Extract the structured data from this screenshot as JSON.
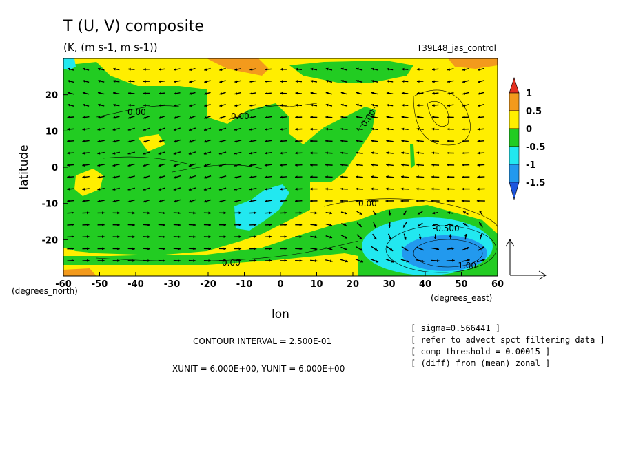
{
  "title": "T (U, V) composite",
  "units": "(K, (m s-1, m s-1))",
  "experiment": "T39L48_jas_control",
  "chart_data": {
    "type": "heatmap",
    "xlabel": "lon",
    "ylabel": "latitude",
    "xunits": "(degrees_east)",
    "yunits": "(degrees_north)",
    "xlim": [
      -60,
      60
    ],
    "ylim": [
      -30,
      30
    ],
    "xticks": [
      "-60",
      "-50",
      "-40",
      "-30",
      "-20",
      "-10",
      "0",
      "10",
      "20",
      "30",
      "40",
      "50",
      "60"
    ],
    "yticks": [
      "20",
      "10",
      "0",
      "-10",
      "-20"
    ],
    "colorbar": {
      "labels": [
        "1",
        "0.5",
        "0",
        "-0.5",
        "-1",
        "-1.5"
      ],
      "colors": [
        "#e53020",
        "#f39a1c",
        "#ffee00",
        "#22cc22",
        "#22e8f0",
        "#2299ee",
        "#1e55dd"
      ]
    },
    "contour_labels": [
      "0.00",
      "0.00",
      "0.00",
      "0.00",
      "-0.500",
      "0.00",
      "-1.00"
    ],
    "vector_field": {
      "type": "wind vectors (U, V)",
      "reference_arrow": true
    }
  },
  "footer": {
    "contour_interval": "CONTOUR INTERVAL = 2.500E-01",
    "units": "XUNIT = 6.000E+00, YUNIT = 6.000E+00"
  },
  "notes": [
    "[ sigma=0.566441 ]",
    "[ refer to advect spct filtering data ]",
    "[ comp threshold = 0.00015 ]",
    "[ (diff) from (mean) zonal ]"
  ]
}
